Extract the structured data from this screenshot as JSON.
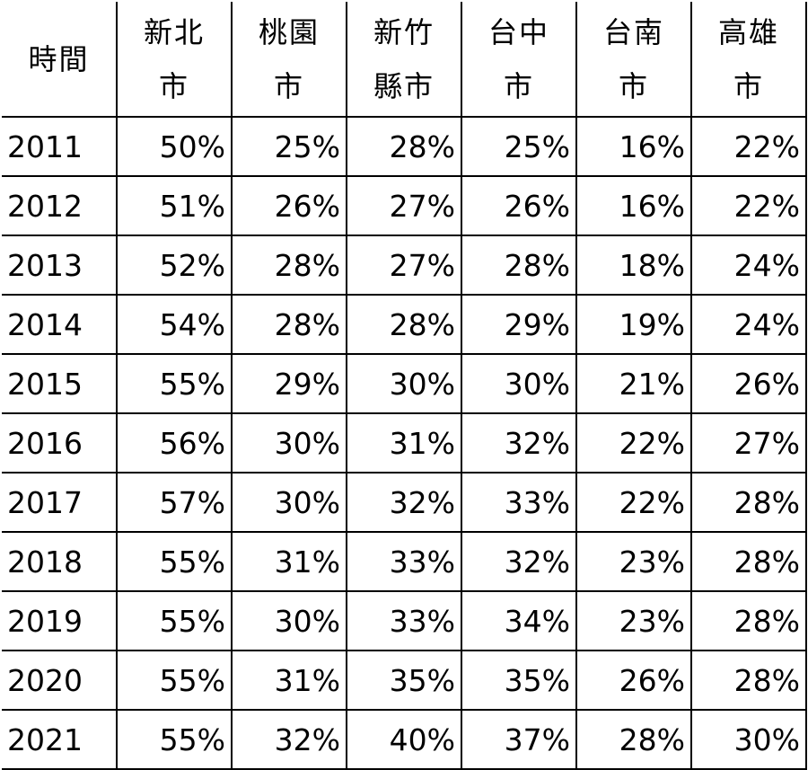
{
  "table": {
    "headers": [
      [
        "時間"
      ],
      [
        "新北",
        "市"
      ],
      [
        "桃園",
        "市"
      ],
      [
        "新竹",
        "縣市"
      ],
      [
        "台中",
        "市"
      ],
      [
        "台南",
        "市"
      ],
      [
        "高雄",
        "市"
      ]
    ],
    "rows": [
      [
        "2011",
        "50%",
        "25%",
        "28%",
        "25%",
        "16%",
        "22%"
      ],
      [
        "2012",
        "51%",
        "26%",
        "27%",
        "26%",
        "16%",
        "22%"
      ],
      [
        "2013",
        "52%",
        "28%",
        "27%",
        "28%",
        "18%",
        "24%"
      ],
      [
        "2014",
        "54%",
        "28%",
        "28%",
        "29%",
        "19%",
        "24%"
      ],
      [
        "2015",
        "55%",
        "29%",
        "30%",
        "30%",
        "21%",
        "26%"
      ],
      [
        "2016",
        "56%",
        "30%",
        "31%",
        "32%",
        "22%",
        "27%"
      ],
      [
        "2017",
        "57%",
        "30%",
        "32%",
        "33%",
        "22%",
        "28%"
      ],
      [
        "2018",
        "55%",
        "31%",
        "33%",
        "32%",
        "23%",
        "28%"
      ],
      [
        "2019",
        "55%",
        "30%",
        "33%",
        "34%",
        "23%",
        "28%"
      ],
      [
        "2020",
        "55%",
        "31%",
        "35%",
        "35%",
        "26%",
        "28%"
      ],
      [
        "2021",
        "55%",
        "32%",
        "40%",
        "37%",
        "28%",
        "30%"
      ]
    ]
  }
}
